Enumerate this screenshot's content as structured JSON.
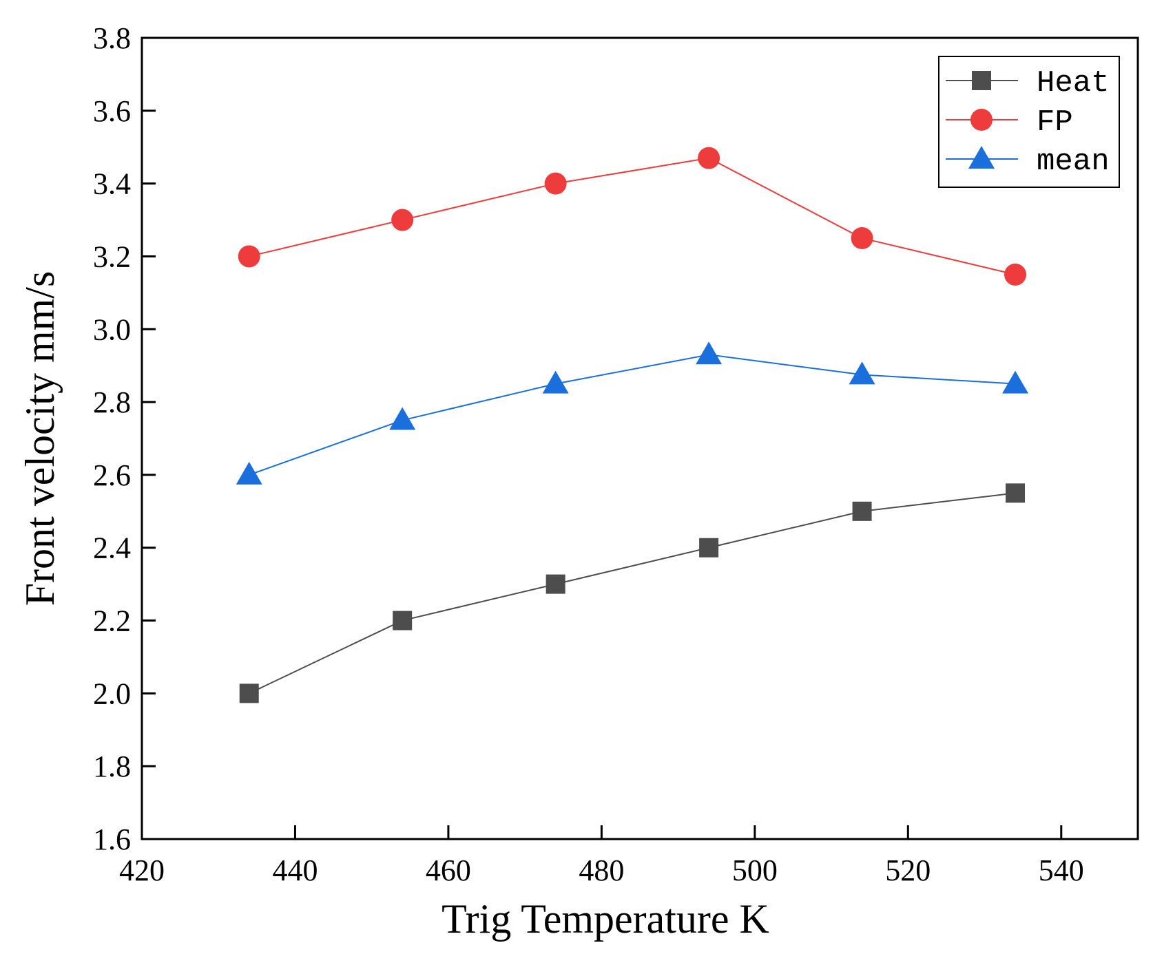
{
  "chart_data": {
    "type": "line",
    "xlabel": "Trig Temperature  K",
    "ylabel": "Front velocity  mm/s",
    "xlim": [
      420,
      550
    ],
    "ylim": [
      1.6,
      3.8
    ],
    "xticks": [
      "420",
      "440",
      "460",
      "480",
      "500",
      "520",
      "540"
    ],
    "yticks": [
      "1.6",
      "1.8",
      "2.0",
      "2.2",
      "2.4",
      "2.6",
      "2.8",
      "3.0",
      "3.2",
      "3.4",
      "3.6",
      "3.8"
    ],
    "x": [
      434,
      454,
      474,
      494,
      514,
      534
    ],
    "grid": false,
    "legend_position": "top-right",
    "series": [
      {
        "name": "Heat",
        "marker": "square",
        "color": "#4d4d4d",
        "values": [
          2.0,
          2.2,
          2.3,
          2.4,
          2.5,
          2.55
        ]
      },
      {
        "name": "FP",
        "marker": "circle",
        "color": "#ee3b3b",
        "values": [
          3.2,
          3.3,
          3.4,
          3.47,
          3.25,
          3.15
        ]
      },
      {
        "name": "mean",
        "marker": "triangle",
        "color": "#1a6fdc",
        "values": [
          2.6,
          2.75,
          2.85,
          2.93,
          2.875,
          2.85
        ]
      }
    ]
  }
}
